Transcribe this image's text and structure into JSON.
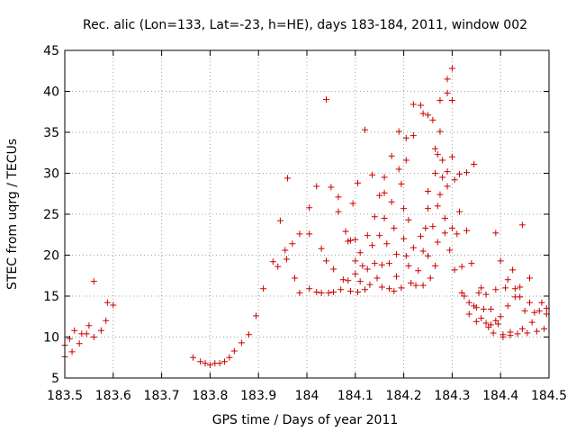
{
  "chart_data": {
    "type": "scatter",
    "title": "Rec. alic (Lon=133, Lat=-23, h=HE), days 183-184, 2011, window 002",
    "xlabel": "GPS time / Days of year 2011",
    "ylabel": "STEC from uqrg / TECUs",
    "xlim": [
      183.5,
      184.5
    ],
    "ylim": [
      5,
      45
    ],
    "x_ticks": [
      183.5,
      183.6,
      183.7,
      183.8,
      183.9,
      184.0,
      184.1,
      184.2,
      184.3,
      184.4,
      184.5
    ],
    "x_tick_labels": [
      "183.5",
      "183.6",
      "183.7",
      "183.8",
      "183.9",
      "184",
      "184.1",
      "184.2",
      "184.3",
      "184.4",
      "184.5"
    ],
    "y_ticks": [
      5,
      10,
      15,
      20,
      25,
      30,
      35,
      40,
      45
    ],
    "y_tick_labels": [
      "5",
      "10",
      "15",
      "20",
      "25",
      "30",
      "35",
      "40",
      "45"
    ],
    "grid": true,
    "marker": "plus",
    "color": "#cc0000",
    "points": [
      [
        183.5,
        7.6
      ],
      [
        183.5,
        9.0
      ],
      [
        183.51,
        9.8
      ],
      [
        183.515,
        8.2
      ],
      [
        183.52,
        10.8
      ],
      [
        183.53,
        9.2
      ],
      [
        183.535,
        10.4
      ],
      [
        183.545,
        10.4
      ],
      [
        183.55,
        11.4
      ],
      [
        183.56,
        10.0
      ],
      [
        183.56,
        16.8
      ],
      [
        183.575,
        10.8
      ],
      [
        183.585,
        12.0
      ],
      [
        183.588,
        14.2
      ],
      [
        183.6,
        13.9
      ],
      [
        183.765,
        7.5
      ],
      [
        183.78,
        7.0
      ],
      [
        183.79,
        6.8
      ],
      [
        183.8,
        6.6
      ],
      [
        183.81,
        6.8
      ],
      [
        183.82,
        6.8
      ],
      [
        183.83,
        7.0
      ],
      [
        183.84,
        7.5
      ],
      [
        183.85,
        8.3
      ],
      [
        183.865,
        9.3
      ],
      [
        183.88,
        10.3
      ],
      [
        183.895,
        12.6
      ],
      [
        183.91,
        15.9
      ],
      [
        183.93,
        19.2
      ],
      [
        183.94,
        18.6
      ],
      [
        183.945,
        24.2
      ],
      [
        183.955,
        20.6
      ],
      [
        183.958,
        19.5
      ],
      [
        183.96,
        29.4
      ],
      [
        183.97,
        21.4
      ],
      [
        183.975,
        17.2
      ],
      [
        183.985,
        22.6
      ],
      [
        183.985,
        15.4
      ],
      [
        184.005,
        25.8
      ],
      [
        184.005,
        22.6
      ],
      [
        184.005,
        15.9
      ],
      [
        184.02,
        28.4
      ],
      [
        184.02,
        15.5
      ],
      [
        184.03,
        20.8
      ],
      [
        184.03,
        15.4
      ],
      [
        184.04,
        39.0
      ],
      [
        184.04,
        19.3
      ],
      [
        184.045,
        15.4
      ],
      [
        184.05,
        28.3
      ],
      [
        184.055,
        18.3
      ],
      [
        184.055,
        15.5
      ],
      [
        184.065,
        27.1
      ],
      [
        184.065,
        25.3
      ],
      [
        184.07,
        15.8
      ],
      [
        184.075,
        17.0
      ],
      [
        184.08,
        22.9
      ],
      [
        184.085,
        21.7
      ],
      [
        184.085,
        16.9
      ],
      [
        184.09,
        15.6
      ],
      [
        184.09,
        21.8
      ],
      [
        184.095,
        26.3
      ],
      [
        184.1,
        19.3
      ],
      [
        184.1,
        17.7
      ],
      [
        184.1,
        21.9
      ],
      [
        184.105,
        28.8
      ],
      [
        184.105,
        15.5
      ],
      [
        184.11,
        16.8
      ],
      [
        184.11,
        20.3
      ],
      [
        184.115,
        18.7
      ],
      [
        184.12,
        35.3
      ],
      [
        184.12,
        15.8
      ],
      [
        184.125,
        22.4
      ],
      [
        184.125,
        18.3
      ],
      [
        184.13,
        16.4
      ],
      [
        184.135,
        29.8
      ],
      [
        184.135,
        21.2
      ],
      [
        184.14,
        24.7
      ],
      [
        184.14,
        19.0
      ],
      [
        184.145,
        17.2
      ],
      [
        184.15,
        27.3
      ],
      [
        184.15,
        22.4
      ],
      [
        184.155,
        18.8
      ],
      [
        184.155,
        16.1
      ],
      [
        184.16,
        29.5
      ],
      [
        184.16,
        27.6
      ],
      [
        184.16,
        24.5
      ],
      [
        184.165,
        21.4
      ],
      [
        184.17,
        15.9
      ],
      [
        184.17,
        19.0
      ],
      [
        184.175,
        32.1
      ],
      [
        184.175,
        26.5
      ],
      [
        184.18,
        23.3
      ],
      [
        184.18,
        15.6
      ],
      [
        184.185,
        20.1
      ],
      [
        184.185,
        17.4
      ],
      [
        184.19,
        35.1
      ],
      [
        184.19,
        30.5
      ],
      [
        184.195,
        28.7
      ],
      [
        184.195,
        16.0
      ],
      [
        184.2,
        25.7
      ],
      [
        184.2,
        22.0
      ],
      [
        184.205,
        34.3
      ],
      [
        184.205,
        31.6
      ],
      [
        184.205,
        19.9
      ],
      [
        184.21,
        24.3
      ],
      [
        184.21,
        18.7
      ],
      [
        184.215,
        16.6
      ],
      [
        184.22,
        38.4
      ],
      [
        184.22,
        34.6
      ],
      [
        184.22,
        20.9
      ],
      [
        184.225,
        16.3
      ],
      [
        184.23,
        18.1
      ],
      [
        184.235,
        38.3
      ],
      [
        184.235,
        22.3
      ],
      [
        184.24,
        37.3
      ],
      [
        184.24,
        20.5
      ],
      [
        184.24,
        16.3
      ],
      [
        184.245,
        23.3
      ],
      [
        184.25,
        37.1
      ],
      [
        184.25,
        27.8
      ],
      [
        184.25,
        25.7
      ],
      [
        184.25,
        19.9
      ],
      [
        184.255,
        17.2
      ],
      [
        184.26,
        36.5
      ],
      [
        184.26,
        23.5
      ],
      [
        184.265,
        33.0
      ],
      [
        184.265,
        30.0
      ],
      [
        184.265,
        18.7
      ],
      [
        184.27,
        32.3
      ],
      [
        184.27,
        26.0
      ],
      [
        184.27,
        21.6
      ],
      [
        184.275,
        38.9
      ],
      [
        184.275,
        35.1
      ],
      [
        184.275,
        27.4
      ],
      [
        184.28,
        31.6
      ],
      [
        184.28,
        29.5
      ],
      [
        184.285,
        24.5
      ],
      [
        184.285,
        22.7
      ],
      [
        184.29,
        41.5
      ],
      [
        184.29,
        39.8
      ],
      [
        184.29,
        30.2
      ],
      [
        184.29,
        28.4
      ],
      [
        184.295,
        20.6
      ],
      [
        184.3,
        42.8
      ],
      [
        184.3,
        38.9
      ],
      [
        184.3,
        32.0
      ],
      [
        184.3,
        23.3
      ],
      [
        184.305,
        18.2
      ],
      [
        184.305,
        29.2
      ],
      [
        184.31,
        22.6
      ],
      [
        184.315,
        29.9
      ],
      [
        184.315,
        25.3
      ],
      [
        184.32,
        18.6
      ],
      [
        184.32,
        15.4
      ],
      [
        184.325,
        15.0
      ],
      [
        184.33,
        30.1
      ],
      [
        184.33,
        23.0
      ],
      [
        184.335,
        12.8
      ],
      [
        184.335,
        14.2
      ],
      [
        184.34,
        19.0
      ],
      [
        184.345,
        31.1
      ],
      [
        184.345,
        13.8
      ],
      [
        184.35,
        11.9
      ],
      [
        184.35,
        13.6
      ],
      [
        184.355,
        15.4
      ],
      [
        184.36,
        16.0
      ],
      [
        184.36,
        12.3
      ],
      [
        184.365,
        13.4
      ],
      [
        184.37,
        11.7
      ],
      [
        184.37,
        15.2
      ],
      [
        184.375,
        11.2
      ],
      [
        184.38,
        13.4
      ],
      [
        184.38,
        11.5
      ],
      [
        184.385,
        10.5
      ],
      [
        184.39,
        22.7
      ],
      [
        184.39,
        15.8
      ],
      [
        184.39,
        12.0
      ],
      [
        184.395,
        11.6
      ],
      [
        184.4,
        19.3
      ],
      [
        184.4,
        12.5
      ],
      [
        184.405,
        10.3
      ],
      [
        184.405,
        10.0
      ],
      [
        184.41,
        16.0
      ],
      [
        184.415,
        17.0
      ],
      [
        184.415,
        13.8
      ],
      [
        184.42,
        10.6
      ],
      [
        184.42,
        10.2
      ],
      [
        184.425,
        18.2
      ],
      [
        184.43,
        15.9
      ],
      [
        184.43,
        14.9
      ],
      [
        184.435,
        10.4
      ],
      [
        184.44,
        14.9
      ],
      [
        184.44,
        16.1
      ],
      [
        184.445,
        23.7
      ],
      [
        184.445,
        11.0
      ],
      [
        184.45,
        13.2
      ],
      [
        184.455,
        10.5
      ],
      [
        184.46,
        17.2
      ],
      [
        184.46,
        14.2
      ],
      [
        184.465,
        11.8
      ],
      [
        184.47,
        13.0
      ],
      [
        184.475,
        10.7
      ],
      [
        184.48,
        13.2
      ],
      [
        184.485,
        14.2
      ],
      [
        184.49,
        11.0
      ],
      [
        184.495,
        13.5
      ],
      [
        184.495,
        12.8
      ]
    ]
  }
}
